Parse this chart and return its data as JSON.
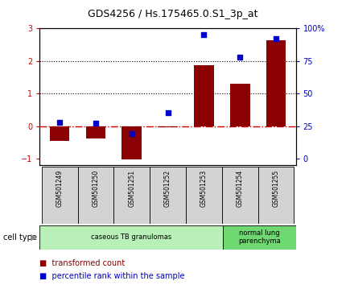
{
  "title": "GDS4256 / Hs.175465.0.S1_3p_at",
  "categories": [
    "GSM501249",
    "GSM501250",
    "GSM501251",
    "GSM501252",
    "GSM501253",
    "GSM501254",
    "GSM501255"
  ],
  "bar_values": [
    -0.45,
    -0.38,
    -1.02,
    -0.02,
    1.88,
    1.3,
    2.65
  ],
  "scatter_values": [
    0.12,
    0.1,
    -0.22,
    0.42,
    2.8,
    2.12,
    2.68
  ],
  "ylim_left": [
    -1.2,
    3.0
  ],
  "ylim_right": [
    0,
    100
  ],
  "yticks_left": [
    -1,
    0,
    1,
    2,
    3
  ],
  "yticks_right": [
    0,
    25,
    50,
    75,
    100
  ],
  "ytick_labels_right": [
    "0",
    "25",
    "50",
    "75",
    "100%"
  ],
  "bar_color": "#8B0000",
  "scatter_color": "#0000CC",
  "hline_color": "#CC0000",
  "dotted_line_color": "black",
  "cell_type_groups": [
    {
      "label": "caseous TB granulomas",
      "start": 0,
      "end": 5,
      "color": "#b8f0b8"
    },
    {
      "label": "normal lung\nparenchyma",
      "start": 5,
      "end": 7,
      "color": "#70d870"
    }
  ],
  "legend_bar_label": "transformed count",
  "legend_scatter_label": "percentile rank within the sample",
  "cell_type_label": "cell type",
  "bg_color": "#ffffff",
  "tick_label_color_left": "#CC0000",
  "tick_label_color_right": "#0000CC",
  "xlabel_row_bg": "#d3d3d3",
  "title_fontsize": 9,
  "tick_fontsize": 7,
  "label_fontsize": 7
}
